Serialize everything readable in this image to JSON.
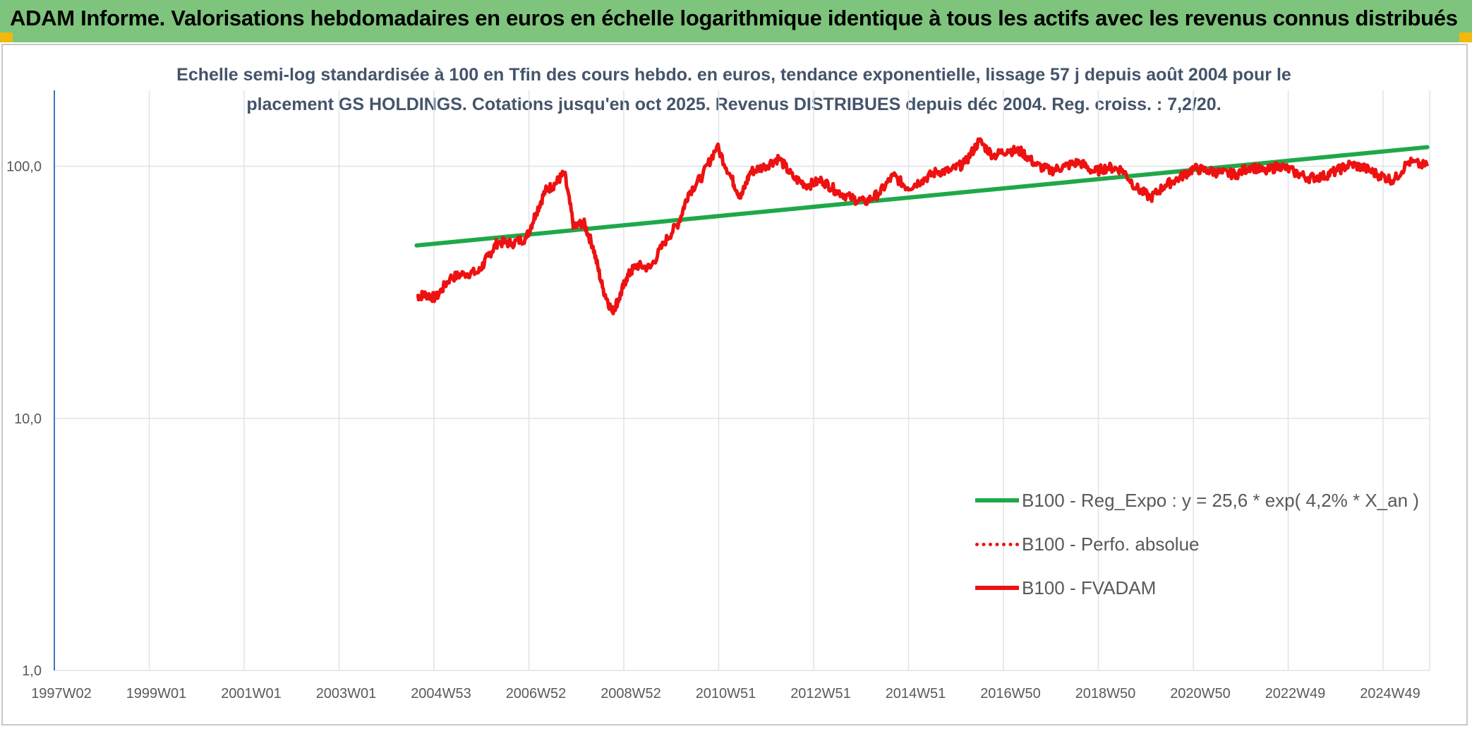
{
  "header": {
    "title": "ADAM Informe. Valorisations hebdomadaires en euros en échelle logarithmique identique à tous les actifs avec les revenus connus distribués"
  },
  "colors": {
    "header_bg": "#7ec47c",
    "corner": "#f2b80c",
    "trend": "#1fa84a",
    "fvadam": "#ee1111",
    "perfo": "#ee1111",
    "grid": "#dfe3e8"
  },
  "chart_data": {
    "type": "line",
    "title_line1": "Echelle semi-log standardisée à 100 en Tfin des cours hebdo. en euros, tendance exponentielle, lissage 57 j depuis août 2004 pour le",
    "title_line2": "placement GS HOLDINGS. Cotations jusqu'en oct 2025. Revenus DISTRIBUES depuis déc 2004. Reg. croiss. : 7,2/20.",
    "xlabel": "",
    "ylabel": "",
    "y_scale": "log",
    "ylim": [
      1,
      200
    ],
    "y_ticks": [
      "1,0",
      "10,0",
      "100,0"
    ],
    "x_ticks": [
      "1997W02",
      "1999W01",
      "2001W01",
      "2003W01",
      "2004W53",
      "2006W52",
      "2008W52",
      "2010W51",
      "2012W51",
      "2014W51",
      "2016W50",
      "2018W50",
      "2020W50",
      "2022W49",
      "2024W49"
    ],
    "grid": true,
    "legend_position": "center-right",
    "series": [
      {
        "name": "B100 - Reg_Expo : y = 25,6 * exp( 4,2% * X_an )",
        "style": "solid-thick",
        "color": "#1fa84a",
        "x": [
          2004.6,
          2025.8
        ],
        "y": [
          48.5,
          119.0
        ]
      },
      {
        "name": "B100 - Perfo. absolue",
        "style": "dotted",
        "color": "#ee1111",
        "x": [],
        "y": []
      },
      {
        "name": "B100 - FVADAM",
        "style": "solid",
        "color": "#ee1111",
        "x": [
          2004.6,
          2004.8,
          2005.0,
          2005.3,
          2005.6,
          2005.9,
          2006.1,
          2006.3,
          2006.6,
          2006.9,
          2007.1,
          2007.3,
          2007.5,
          2007.7,
          2007.9,
          2008.1,
          2008.3,
          2008.5,
          2008.7,
          2008.85,
          2009.0,
          2009.2,
          2009.5,
          2009.8,
          2010.1,
          2010.3,
          2010.6,
          2010.9,
          2011.2,
          2011.4,
          2011.6,
          2011.9,
          2012.2,
          2012.5,
          2012.8,
          2013.1,
          2013.4,
          2013.7,
          2014.0,
          2014.3,
          2014.6,
          2014.9,
          2015.2,
          2015.5,
          2015.8,
          2016.1,
          2016.4,
          2016.7,
          2017.0,
          2017.3,
          2017.6,
          2017.9,
          2018.2,
          2018.5,
          2018.8,
          2019.1,
          2019.4,
          2019.7,
          2020.0,
          2020.3,
          2020.6,
          2020.9,
          2021.2,
          2021.5,
          2021.8,
          2022.1,
          2022.4,
          2022.7,
          2023.0,
          2023.3,
          2023.6,
          2023.9,
          2024.2,
          2024.5,
          2024.8,
          2025.1,
          2025.4,
          2025.8
        ],
        "y": [
          30.5,
          31.0,
          30.0,
          36.0,
          37.5,
          38.0,
          44.0,
          50.0,
          49.5,
          52.0,
          65.0,
          80.0,
          85.0,
          94.0,
          57.0,
          60.0,
          48.0,
          33.0,
          26.5,
          30.0,
          36.0,
          40.5,
          39.5,
          50.0,
          60.0,
          78.0,
          92.0,
          120.0,
          90.0,
          75.0,
          95.0,
          100.0,
          108.0,
          90.0,
          84.0,
          88.0,
          80.0,
          75.0,
          72.0,
          78.0,
          92.0,
          82.0,
          88.0,
          95.0,
          96.0,
          103.0,
          126.0,
          110.0,
          116.0,
          114.0,
          101.0,
          96.0,
          100.0,
          104.0,
          95.0,
          99.0,
          97.0,
          82.0,
          75.0,
          84.0,
          90.0,
          98.0,
          96.0,
          94.0,
          93.0,
          100.0,
          95.0,
          101.0,
          95.0,
          90.0,
          91.0,
          96.0,
          102.0,
          98.0,
          92.0,
          88.0,
          104.0,
          100.0
        ]
      }
    ]
  }
}
